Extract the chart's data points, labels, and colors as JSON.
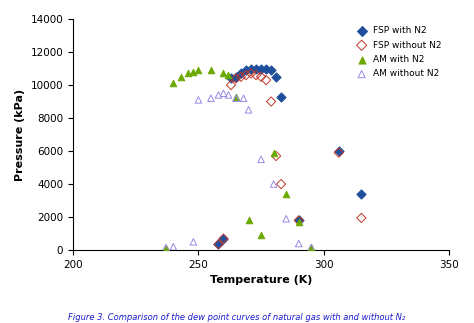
{
  "title": "",
  "xlabel": "Temperature (K)",
  "ylabel": "Pressure (kPa)",
  "caption": "Figure 3. Comparison of the dew point curves of natural gas with and without N₂",
  "xlim": [
    200,
    350
  ],
  "ylim": [
    0,
    14000
  ],
  "xticks": [
    200,
    250,
    300,
    350
  ],
  "yticks": [
    0,
    2000,
    4000,
    6000,
    8000,
    10000,
    12000,
    14000
  ],
  "FSP_with_N2": {
    "T": [
      258,
      260,
      263,
      265,
      267,
      269,
      271,
      273,
      275,
      277,
      279,
      281,
      283,
      290,
      306,
      315
    ],
    "P": [
      350,
      700,
      10400,
      10500,
      10700,
      10900,
      11000,
      11000,
      11000,
      11000,
      10900,
      10500,
      9300,
      1800,
      6000,
      3400
    ],
    "color": "#1f4e9c",
    "marker": "D",
    "filled": true,
    "label": "FSP with N2"
  },
  "FSP_without_N2": {
    "T": [
      258,
      260,
      263,
      265,
      267,
      269,
      271,
      273,
      275,
      277,
      279,
      281,
      283,
      290,
      306,
      315
    ],
    "P": [
      350,
      700,
      10000,
      10400,
      10500,
      10600,
      10700,
      10600,
      10500,
      10300,
      9000,
      5700,
      4000,
      1800,
      5900,
      1950
    ],
    "color": "#c0392b",
    "marker": "D",
    "filled": false,
    "label": "FSP without N2"
  },
  "AM_with_N2": {
    "T": [
      237,
      240,
      243,
      246,
      248,
      250,
      255,
      260,
      262,
      265,
      270,
      275,
      280,
      285,
      290,
      295
    ],
    "P": [
      100,
      10100,
      10500,
      10700,
      10800,
      10900,
      10900,
      10700,
      10600,
      9300,
      1800,
      900,
      5900,
      3400,
      1700,
      200
    ],
    "color": "#6aaa00",
    "marker": "^",
    "filled": true,
    "label": "AM with N2"
  },
  "AM_without_N2": {
    "T": [
      237,
      240,
      248,
      250,
      255,
      258,
      260,
      262,
      265,
      268,
      270,
      275,
      280,
      285,
      290,
      295
    ],
    "P": [
      150,
      200,
      500,
      9100,
      9200,
      9400,
      9500,
      9400,
      9200,
      9200,
      8500,
      5500,
      4000,
      1900,
      400,
      150
    ],
    "color": "#9b88e8",
    "marker": "^",
    "filled": false,
    "label": "AM without N2"
  },
  "background_color": "#ffffff",
  "legend_loc": "upper right"
}
